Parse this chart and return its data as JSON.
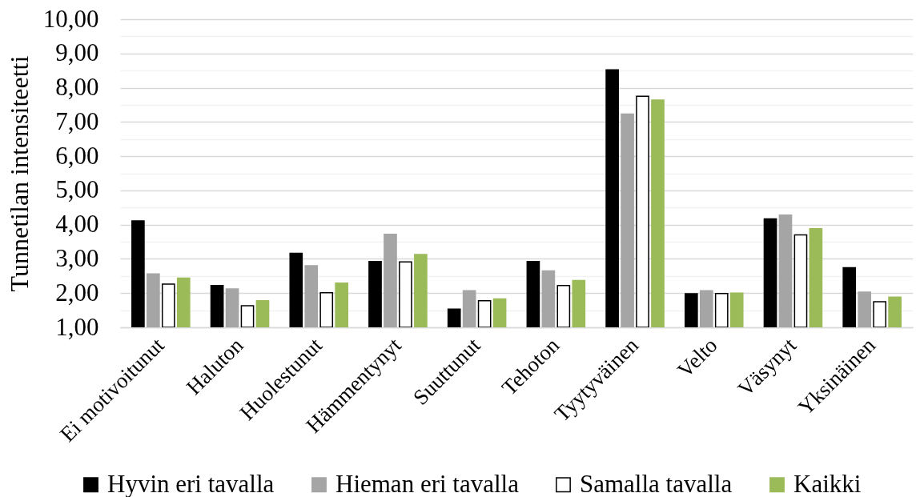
{
  "chart_data": {
    "type": "bar",
    "ylabel": "Tunnetilan intensiteetti",
    "categories": [
      "Ei motivoitunut",
      "Haluton",
      "Huolestunut",
      "Hämmentynyt",
      "Suuttunut",
      "Tehoton",
      "Tyytyväinen",
      "Velto",
      "Väsynyt",
      "Yksinäinen"
    ],
    "series": [
      {
        "name": "Hyvin eri tavalla",
        "color": "#000000",
        "values": [
          4.11,
          2.22,
          3.16,
          2.92,
          1.53,
          2.92,
          8.52,
          1.98,
          4.17,
          2.74
        ]
      },
      {
        "name": "Hieman eri tavalla",
        "color": "#a5a5a5",
        "values": [
          2.56,
          2.12,
          2.8,
          3.72,
          2.07,
          2.65,
          7.23,
          2.07,
          4.28,
          2.03
        ]
      },
      {
        "name": "Samalla tavalla",
        "color": "#ffffff",
        "values": [
          2.26,
          1.63,
          2.01,
          2.91,
          1.78,
          2.22,
          7.75,
          1.99,
          3.7,
          1.75
        ]
      },
      {
        "name": "Kaikki",
        "color": "#9bbb59",
        "values": [
          2.44,
          1.78,
          2.29,
          3.13,
          1.83,
          2.37,
          7.64,
          2.0,
          3.88,
          1.88
        ]
      }
    ],
    "ylim": [
      1,
      10
    ],
    "yticks": [
      {
        "value": 1,
        "label": "1,00"
      },
      {
        "value": 1.5,
        "label": null
      },
      {
        "value": 2,
        "label": "2,00"
      },
      {
        "value": 2.5,
        "label": null
      },
      {
        "value": 3,
        "label": "3,00"
      },
      {
        "value": 3.5,
        "label": null
      },
      {
        "value": 4,
        "label": "4,00"
      },
      {
        "value": 4.5,
        "label": null
      },
      {
        "value": 5,
        "label": "5,00"
      },
      {
        "value": 5.5,
        "label": null
      },
      {
        "value": 6,
        "label": "6,00"
      },
      {
        "value": 6.5,
        "label": null
      },
      {
        "value": 7,
        "label": "7,00"
      },
      {
        "value": 7.5,
        "label": null
      },
      {
        "value": 8,
        "label": "8,00"
      },
      {
        "value": 8.5,
        "label": null
      },
      {
        "value": 9,
        "label": "9,00"
      },
      {
        "value": 9.5,
        "label": null
      },
      {
        "value": 10,
        "label": "10,00"
      }
    ],
    "grid": "y",
    "legend": "bottom"
  }
}
